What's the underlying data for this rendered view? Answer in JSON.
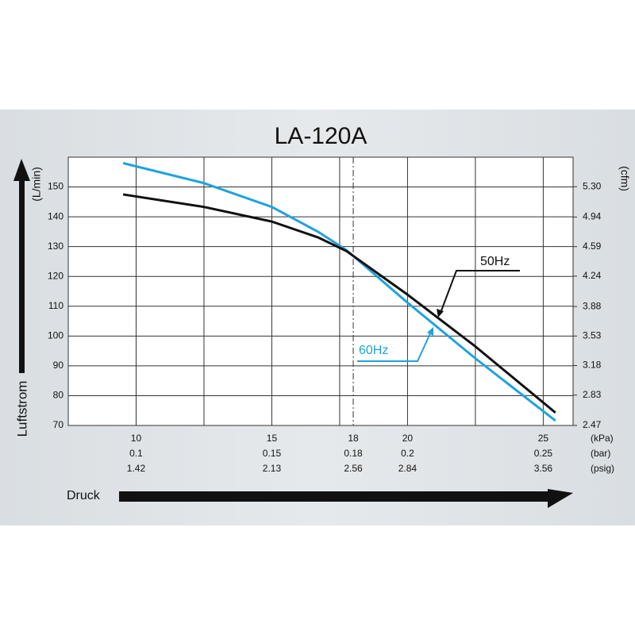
{
  "chart_data": {
    "type": "line",
    "title": "LA-120A",
    "y_label": "(L/min)",
    "y_axis_title": "Luftstrom",
    "y2_label": "(cfm)",
    "x_axis_title": "Druck",
    "x_units": [
      "(kPa)",
      "(bar)",
      "(psig)"
    ],
    "x": [
      9.52,
      12.5,
      15,
      16.7,
      17.75,
      20,
      22.5,
      25.45
    ],
    "series": [
      {
        "name": "50Hz",
        "color": "#111111",
        "values": [
          147.5,
          143.3,
          138.4,
          133.1,
          128.5,
          113.9,
          96.5,
          74.3
        ]
      },
      {
        "name": "60Hz",
        "color": "#1fa3dc",
        "values": [
          158.0,
          151.3,
          143.3,
          135.0,
          128.8,
          111.2,
          92.5,
          71.6
        ]
      }
    ],
    "xlim": [
      7.5,
      26.1
    ],
    "xticks": [
      10,
      15,
      18,
      20,
      25
    ],
    "xticks_bar": [
      "0.1",
      "0.15",
      "0.18",
      "0.2",
      "0.25"
    ],
    "xticks_psig": [
      "1.42",
      "2.13",
      "2.56",
      "2.84",
      "3.56"
    ],
    "xgrid_minor": [
      12.5,
      17.5,
      22.5
    ],
    "ylim": [
      70,
      160
    ],
    "yticks": [
      70,
      80,
      90,
      100,
      110,
      120,
      130,
      140,
      150
    ],
    "y2lim": [
      2.47,
      5.65
    ],
    "y2ticks": [
      2.47,
      2.83,
      3.18,
      3.53,
      3.88,
      4.24,
      4.59,
      4.94,
      {
        "value": 5.3,
        "label": "5.30"
      }
    ],
    "grid": true
  }
}
